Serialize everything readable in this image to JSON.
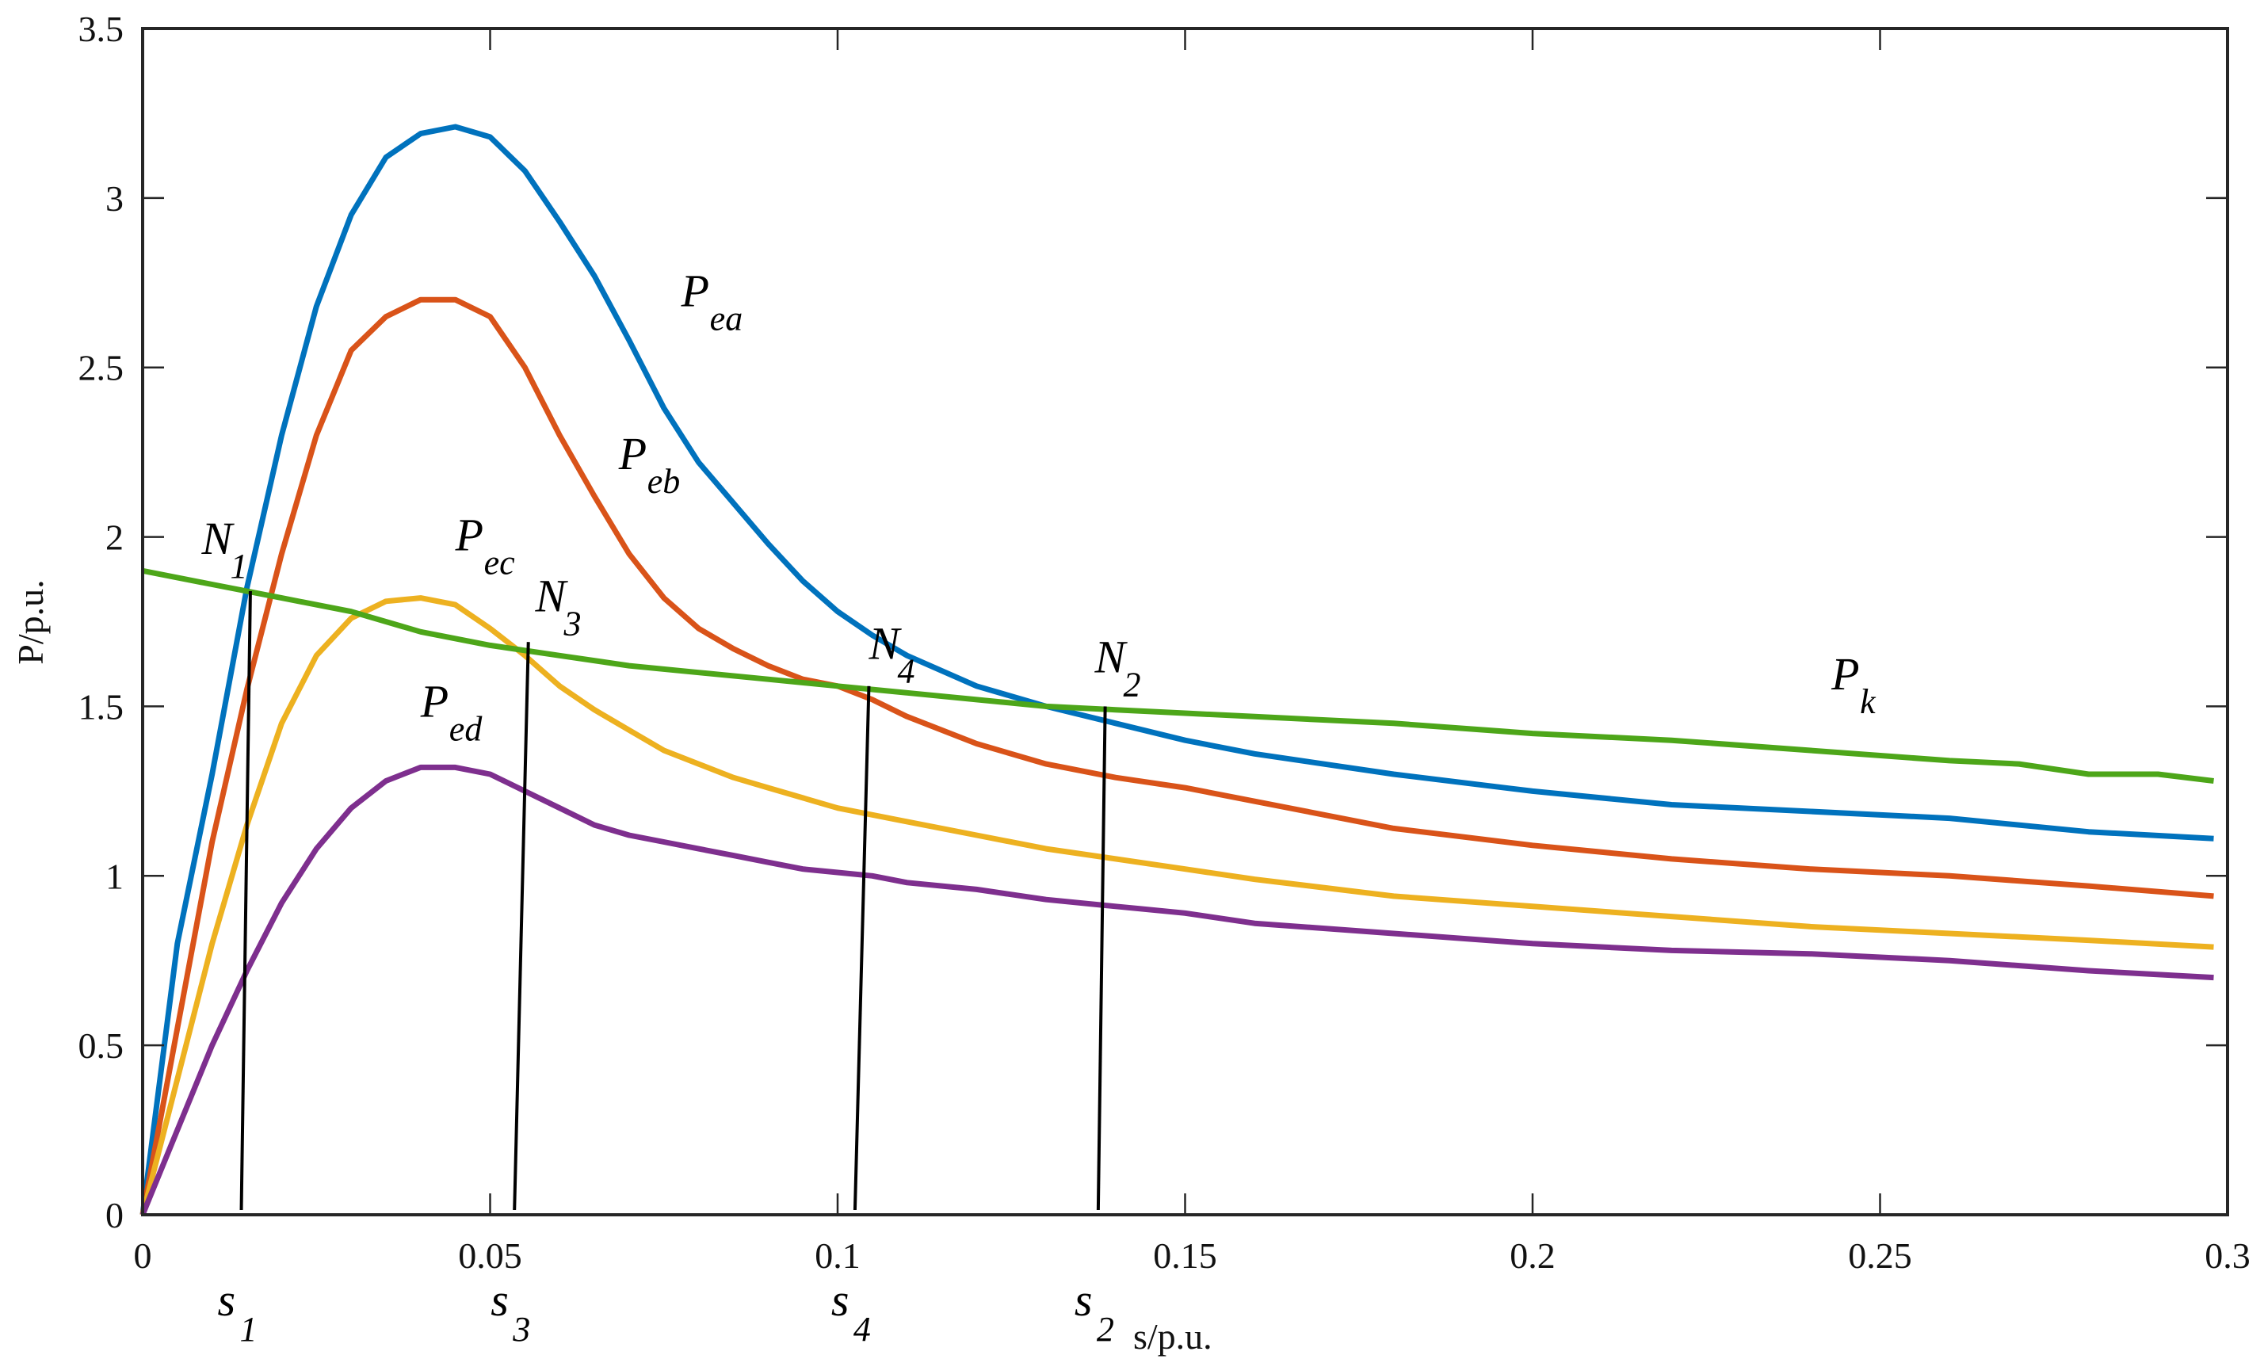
{
  "chart_data": {
    "type": "line",
    "title": "",
    "xlabel": "s/p.u.",
    "ylabel": "P/p.u.",
    "xlim": [
      0,
      0.3
    ],
    "ylim": [
      0,
      3.5
    ],
    "grid": false,
    "legend": "none (inline curve labels)",
    "xticks": [
      0,
      0.05,
      0.1,
      0.15,
      0.2,
      0.25,
      0.3
    ],
    "xtick_labels": [
      "0",
      "0.05",
      "0.1",
      "0.15",
      "0.2",
      "0.25",
      "0.3"
    ],
    "yticks": [
      0,
      0.5,
      1,
      1.5,
      2,
      2.5,
      3,
      3.5
    ],
    "ytick_labels": [
      "0",
      "0.5",
      "1",
      "1.5",
      "2",
      "2.5",
      "3",
      "3.5"
    ],
    "series": [
      {
        "name": "Pea",
        "label_main": "P",
        "label_sub": "ea",
        "color": "#0072BD",
        "label_pos": [
          0.0775,
          2.68
        ],
        "x": [
          0,
          0.005,
          0.01,
          0.015,
          0.02,
          0.025,
          0.03,
          0.035,
          0.04,
          0.045,
          0.05,
          0.055,
          0.06,
          0.065,
          0.07,
          0.075,
          0.08,
          0.085,
          0.09,
          0.095,
          0.1,
          0.105,
          0.11,
          0.12,
          0.13,
          0.14,
          0.15,
          0.16,
          0.18,
          0.2,
          0.22,
          0.24,
          0.26,
          0.28,
          0.298
        ],
        "y": [
          0,
          0.8,
          1.3,
          1.85,
          2.3,
          2.68,
          2.95,
          3.12,
          3.19,
          3.21,
          3.18,
          3.08,
          2.93,
          2.77,
          2.58,
          2.38,
          2.22,
          2.1,
          1.98,
          1.87,
          1.78,
          1.71,
          1.65,
          1.56,
          1.5,
          1.45,
          1.4,
          1.36,
          1.3,
          1.25,
          1.21,
          1.19,
          1.17,
          1.13,
          1.11
        ]
      },
      {
        "name": "Peb",
        "label_main": "P",
        "label_sub": "eb",
        "color": "#D95319",
        "label_pos": [
          0.0685,
          2.2
        ],
        "x": [
          0,
          0.005,
          0.01,
          0.015,
          0.02,
          0.025,
          0.03,
          0.035,
          0.04,
          0.045,
          0.05,
          0.055,
          0.06,
          0.065,
          0.07,
          0.075,
          0.08,
          0.085,
          0.09,
          0.095,
          0.1,
          0.105,
          0.11,
          0.12,
          0.13,
          0.14,
          0.15,
          0.16,
          0.18,
          0.2,
          0.22,
          0.24,
          0.26,
          0.28,
          0.298
        ],
        "y": [
          0,
          0.55,
          1.1,
          1.55,
          1.95,
          2.3,
          2.55,
          2.65,
          2.7,
          2.7,
          2.65,
          2.5,
          2.3,
          2.12,
          1.95,
          1.82,
          1.73,
          1.67,
          1.62,
          1.58,
          1.56,
          1.52,
          1.47,
          1.39,
          1.33,
          1.29,
          1.26,
          1.22,
          1.14,
          1.09,
          1.05,
          1.02,
          1.0,
          0.97,
          0.94
        ]
      },
      {
        "name": "Pec",
        "label_main": "P",
        "label_sub": "ec",
        "color": "#EDB120",
        "label_pos": [
          0.045,
          1.96
        ],
        "x": [
          0,
          0.005,
          0.01,
          0.015,
          0.02,
          0.025,
          0.03,
          0.035,
          0.04,
          0.045,
          0.05,
          0.055,
          0.06,
          0.065,
          0.07,
          0.075,
          0.08,
          0.085,
          0.09,
          0.095,
          0.1,
          0.105,
          0.11,
          0.12,
          0.13,
          0.14,
          0.15,
          0.16,
          0.18,
          0.2,
          0.22,
          0.24,
          0.26,
          0.28,
          0.298
        ],
        "y": [
          0,
          0.4,
          0.8,
          1.15,
          1.45,
          1.65,
          1.76,
          1.81,
          1.82,
          1.8,
          1.73,
          1.65,
          1.56,
          1.49,
          1.43,
          1.37,
          1.33,
          1.29,
          1.26,
          1.23,
          1.2,
          1.18,
          1.16,
          1.12,
          1.08,
          1.05,
          1.02,
          0.99,
          0.94,
          0.91,
          0.88,
          0.85,
          0.83,
          0.81,
          0.79
        ]
      },
      {
        "name": "Ped",
        "label_main": "P",
        "label_sub": "ed",
        "color": "#7E2F8E",
        "label_pos": [
          0.04,
          1.47
        ],
        "x": [
          0,
          0.005,
          0.01,
          0.015,
          0.02,
          0.025,
          0.03,
          0.035,
          0.04,
          0.045,
          0.05,
          0.055,
          0.06,
          0.065,
          0.07,
          0.075,
          0.08,
          0.085,
          0.09,
          0.095,
          0.1,
          0.105,
          0.11,
          0.12,
          0.13,
          0.14,
          0.15,
          0.16,
          0.18,
          0.2,
          0.22,
          0.24,
          0.26,
          0.28,
          0.298
        ],
        "y": [
          0,
          0.25,
          0.5,
          0.72,
          0.92,
          1.08,
          1.2,
          1.28,
          1.32,
          1.32,
          1.3,
          1.25,
          1.2,
          1.15,
          1.12,
          1.1,
          1.08,
          1.06,
          1.04,
          1.02,
          1.01,
          1.0,
          0.98,
          0.96,
          0.93,
          0.91,
          0.89,
          0.86,
          0.83,
          0.8,
          0.78,
          0.77,
          0.75,
          0.72,
          0.7
        ]
      },
      {
        "name": "Pk",
        "label_main": "P",
        "label_sub": "k",
        "color": "#4DA619",
        "label_pos": [
          0.243,
          1.55
        ],
        "x": [
          0,
          0.01,
          0.02,
          0.03,
          0.04,
          0.05,
          0.06,
          0.07,
          0.08,
          0.09,
          0.1,
          0.11,
          0.12,
          0.13,
          0.14,
          0.15,
          0.16,
          0.18,
          0.2,
          0.22,
          0.24,
          0.26,
          0.27,
          0.28,
          0.29,
          0.298
        ],
        "y": [
          1.9,
          1.86,
          1.82,
          1.78,
          1.72,
          1.68,
          1.65,
          1.62,
          1.6,
          1.58,
          1.56,
          1.54,
          1.52,
          1.5,
          1.49,
          1.48,
          1.47,
          1.45,
          1.42,
          1.4,
          1.37,
          1.34,
          1.33,
          1.3,
          1.3,
          1.28
        ]
      }
    ],
    "operating_points": [
      {
        "label_main": "N",
        "label_sub": "1",
        "s": 0.0155,
        "P": 1.84,
        "s_axis_label_main": "s",
        "s_axis_label_sub": "1",
        "s_foot": 0.0142,
        "label_pos": [
          0.0085,
          1.95
        ]
      },
      {
        "label_main": "N",
        "label_sub": "2",
        "s": 0.1385,
        "P": 1.5,
        "s_axis_label_main": "s",
        "s_axis_label_sub": "2",
        "s_foot": 0.1375,
        "label_pos": [
          0.137,
          1.6
        ]
      },
      {
        "label_main": "N",
        "label_sub": "3",
        "s": 0.0555,
        "P": 1.69,
        "s_axis_label_main": "s",
        "s_axis_label_sub": "3",
        "s_foot": 0.0535,
        "label_pos": [
          0.0565,
          1.78
        ]
      },
      {
        "label_main": "N",
        "label_sub": "4",
        "s": 0.1045,
        "P": 1.56,
        "s_axis_label_main": "s",
        "s_axis_label_sub": "4",
        "s_foot": 0.1025,
        "label_pos": [
          0.1045,
          1.64
        ]
      }
    ]
  },
  "axes": {
    "xlabel": "s/p.u.",
    "ylabel": "P/p.u."
  }
}
